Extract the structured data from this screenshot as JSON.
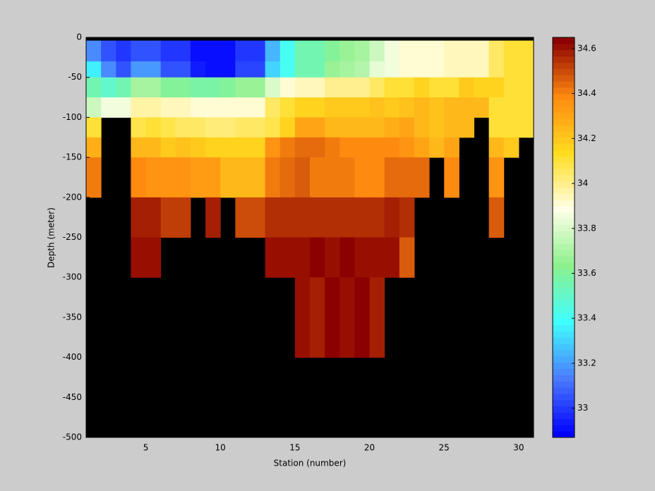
{
  "chart_data": {
    "type": "heatmap",
    "xlabel": "Station (number)",
    "ylabel": "Depth (meter)",
    "x": [
      1,
      2,
      3,
      4,
      5,
      6,
      7,
      8,
      9,
      10,
      11,
      12,
      13,
      14,
      15,
      16,
      17,
      18,
      19,
      20,
      21,
      22,
      23,
      24,
      25,
      26,
      27,
      28,
      29,
      30,
      31
    ],
    "y": [
      -4,
      -30,
      -50,
      -75,
      -100,
      -125,
      -150,
      -200,
      -250,
      -300,
      -400
    ],
    "values": [
      [
        33.15,
        33.05,
        33.0,
        33.05,
        33.05,
        33.0,
        33.0,
        32.92,
        32.92,
        32.9,
        33.0,
        33.0,
        33.25,
        33.4,
        33.55,
        33.55,
        33.6,
        33.65,
        33.7,
        33.78,
        33.85,
        33.9,
        33.92,
        33.92,
        33.95,
        33.95,
        33.95,
        34.05,
        34.1,
        34.1
      ],
      [
        33.35,
        33.15,
        33.05,
        33.2,
        33.2,
        33.05,
        33.05,
        32.95,
        32.92,
        32.92,
        33.02,
        33.02,
        33.3,
        33.4,
        33.55,
        33.55,
        33.65,
        33.7,
        33.72,
        33.82,
        33.85,
        33.9,
        33.92,
        33.92,
        33.95,
        33.95,
        33.95,
        34.05,
        34.1,
        34.1
      ],
      [
        33.55,
        33.5,
        33.55,
        33.68,
        33.68,
        33.62,
        33.62,
        33.58,
        33.58,
        33.62,
        33.66,
        33.66,
        33.8,
        33.9,
        33.95,
        33.95,
        34.0,
        34.0,
        34.0,
        34.05,
        34.1,
        34.1,
        34.15,
        34.12,
        34.12,
        34.2,
        34.15,
        34.15,
        34.1,
        34.12
      ],
      [
        33.78,
        33.85,
        33.85,
        33.98,
        33.98,
        33.95,
        33.95,
        33.9,
        33.9,
        33.9,
        33.92,
        33.92,
        34.05,
        34.1,
        34.15,
        34.15,
        34.2,
        34.2,
        34.2,
        34.22,
        34.2,
        34.22,
        34.25,
        34.22,
        34.25,
        34.25,
        34.25,
        34.1,
        34.12,
        34.1
      ],
      [
        34.1,
        null,
        null,
        34.08,
        34.12,
        34.08,
        34.05,
        34.05,
        34.02,
        34.02,
        34.05,
        34.05,
        34.08,
        34.15,
        34.3,
        34.3,
        34.25,
        34.25,
        34.25,
        34.25,
        34.27,
        34.3,
        34.25,
        34.22,
        34.25,
        34.25,
        null,
        34.1,
        34.12,
        34.1
      ],
      [
        34.28,
        null,
        null,
        34.25,
        34.25,
        34.2,
        34.22,
        34.18,
        34.15,
        34.15,
        34.15,
        34.15,
        34.35,
        34.4,
        34.45,
        34.45,
        34.42,
        34.38,
        34.38,
        34.38,
        34.38,
        34.35,
        34.3,
        34.25,
        34.3,
        null,
        null,
        34.25,
        34.2,
        null
      ],
      [
        34.42,
        null,
        null,
        34.38,
        34.36,
        34.36,
        34.35,
        34.33,
        34.33,
        34.25,
        34.25,
        34.25,
        34.42,
        34.45,
        34.48,
        34.42,
        34.42,
        34.42,
        34.38,
        34.38,
        34.45,
        34.45,
        34.45,
        null,
        34.38,
        null,
        null,
        34.35,
        null,
        null
      ],
      [
        null,
        null,
        null,
        34.58,
        34.58,
        34.52,
        34.52,
        null,
        34.58,
        null,
        34.5,
        34.5,
        34.55,
        34.55,
        34.55,
        34.55,
        34.55,
        34.55,
        34.55,
        34.55,
        34.58,
        34.55,
        null,
        null,
        null,
        null,
        null,
        34.47,
        null,
        null
      ],
      [
        null,
        null,
        null,
        34.6,
        34.6,
        null,
        null,
        null,
        null,
        null,
        null,
        null,
        34.62,
        34.62,
        34.6,
        34.63,
        34.6,
        34.63,
        34.6,
        34.6,
        34.6,
        34.48,
        null,
        null,
        null,
        null,
        null,
        null,
        null,
        null
      ],
      [
        null,
        null,
        null,
        null,
        null,
        null,
        null,
        null,
        null,
        null,
        null,
        null,
        null,
        null,
        34.6,
        34.58,
        34.63,
        34.6,
        34.63,
        34.58,
        null,
        null,
        null,
        null,
        null,
        null,
        null,
        null,
        null,
        null
      ]
    ],
    "xlim": [
      1,
      31
    ],
    "ylim": [
      -500,
      0
    ],
    "xticks": [
      5,
      10,
      15,
      20,
      25,
      30
    ],
    "yticks": [
      0,
      -50,
      -100,
      -150,
      -200,
      -250,
      -300,
      -350,
      -400,
      -450,
      -500
    ],
    "clim": [
      32.87,
      34.65
    ],
    "colorbar_ticks": [
      33,
      33.2,
      33.4,
      33.6,
      33.8,
      34,
      34.2,
      34.4,
      34.6
    ],
    "colormap": [
      "#0000ff",
      "#4a7cff",
      "#40ffff",
      "#8cf08c",
      "#ffffe8",
      "#ffdc20",
      "#ff8a10",
      "#8b0000"
    ],
    "background": "#000000"
  }
}
